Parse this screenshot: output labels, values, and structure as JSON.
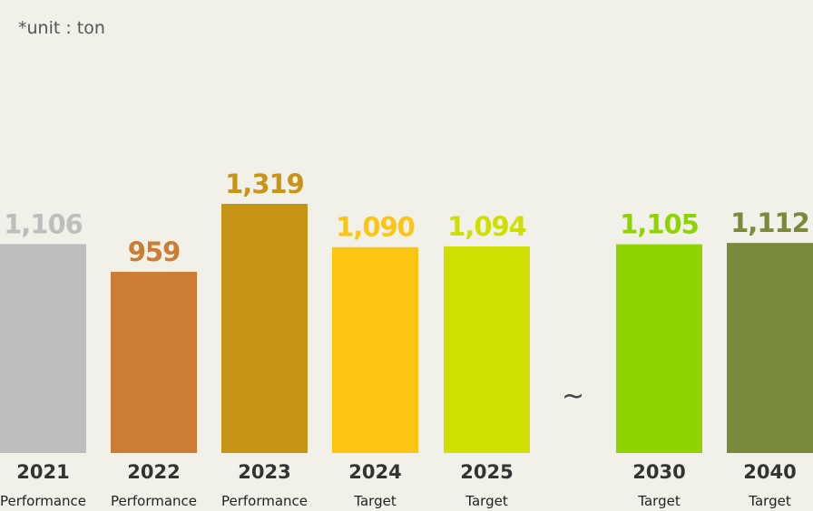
{
  "unit_note": "*unit : ton",
  "break_symbol": "~",
  "colors": [
    "#bdbdbd",
    "#cc7d33",
    "#c89416",
    "#fcc513",
    "#cfdf00",
    "#8fd400",
    "#7a8a3c"
  ],
  "chart_data": {
    "type": "bar",
    "categories": [
      "2021",
      "2022",
      "2023",
      "2024",
      "2025",
      "2030",
      "2040"
    ],
    "category_sublabels": [
      "Performance",
      "Performance",
      "Performance",
      "Target",
      "Target",
      "Target",
      "Target"
    ],
    "values": [
      1106,
      959,
      1319,
      1090,
      1094,
      1105,
      1112
    ],
    "value_labels": [
      "1,106",
      "959",
      "1,319",
      "1,090",
      "1,094",
      "1,105",
      "1,112"
    ],
    "title": "",
    "xlabel": "",
    "ylabel": "",
    "grid": false,
    "axis_break_between": [
      "2025",
      "2030"
    ]
  }
}
